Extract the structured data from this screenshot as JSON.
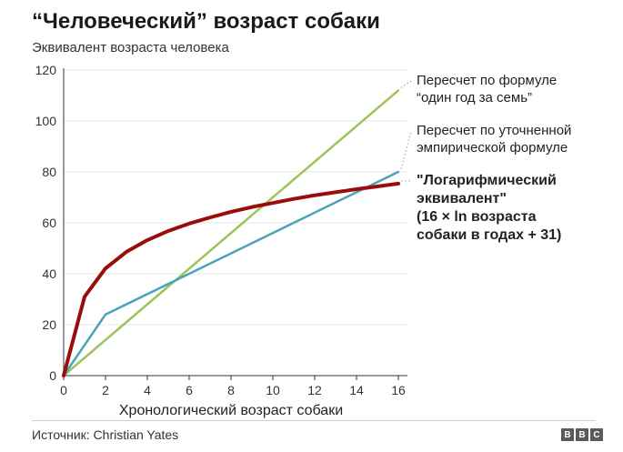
{
  "header": {
    "title": "“Человеческий” возраст собаки",
    "subtitle": "Эквивалент возраста человека"
  },
  "footer": {
    "source": "Источник: Christian Yates",
    "logo_letters": [
      "B",
      "B",
      "C"
    ]
  },
  "colors": {
    "seven_rule": "#9cc45a",
    "empirical": "#4aa3b8",
    "logarithmic": "#9b0d0d",
    "axis": "#333333",
    "grid": "#e6e6e6"
  },
  "chart_data": {
    "type": "line",
    "title": "“Человеческий” возраст собаки",
    "ylabel": "Эквивалент возраста человека",
    "xlabel": "Хронологический возраст собаки",
    "xlim": [
      0,
      16
    ],
    "ylim": [
      0,
      120
    ],
    "xticks": [
      0,
      2,
      4,
      6,
      8,
      10,
      12,
      14,
      16
    ],
    "yticks": [
      0,
      20,
      40,
      60,
      80,
      100,
      120
    ],
    "grid": false,
    "series": [
      {
        "key": "seven",
        "name_lines": [
          "Пересчет по формуле",
          "“один год за семь”"
        ],
        "bold": false,
        "x": [
          0,
          16
        ],
        "y": [
          0,
          112
        ]
      },
      {
        "key": "empirical",
        "name_lines": [
          "Пересчет по уточненной",
          "эмпирической формуле"
        ],
        "bold": false,
        "x": [
          0,
          2,
          16
        ],
        "y": [
          0,
          24,
          80
        ]
      },
      {
        "key": "log",
        "name_lines": [
          "\"Логарифмический",
          "эквивалент\"",
          "(16 × ln возраста",
          "собаки в годах + 31)"
        ],
        "bold": true,
        "x": [
          0,
          1,
          2,
          3,
          4,
          5,
          6,
          7,
          8,
          9,
          10,
          11,
          12,
          13,
          14,
          15,
          16
        ],
        "y": [
          0,
          31,
          42.1,
          48.6,
          53.2,
          56.8,
          59.7,
          62.1,
          64.3,
          66.2,
          67.8,
          69.4,
          70.8,
          72.0,
          73.2,
          74.3,
          75.4
        ]
      }
    ]
  }
}
